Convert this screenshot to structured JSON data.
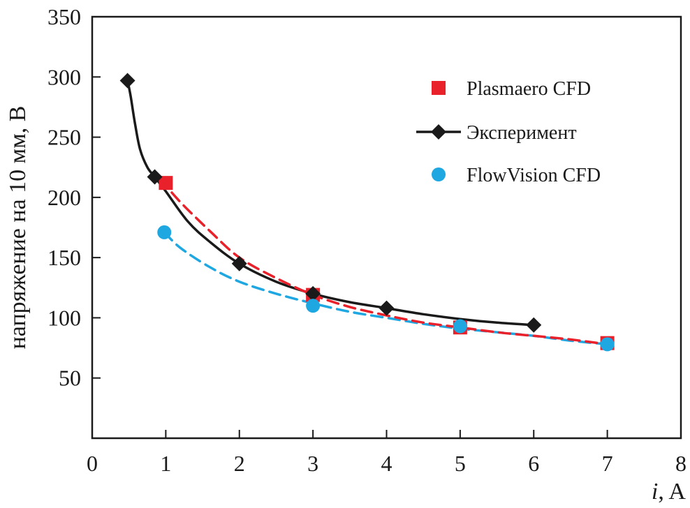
{
  "chart_data": {
    "type": "line",
    "xlabel_italic": "i",
    "xlabel_unit": ", A",
    "ylabel": "напряжение на 10 мм, В",
    "xlim": [
      0,
      8
    ],
    "ylim": [
      0,
      350
    ],
    "xticks": [
      0,
      1,
      2,
      3,
      4,
      5,
      6,
      7,
      8
    ],
    "yticks": [
      50,
      100,
      150,
      200,
      250,
      300,
      350
    ],
    "grid": false,
    "legend_position": "top-right",
    "series": [
      {
        "name": "Plasmaero CFD",
        "marker": "square",
        "color": "#e8212b",
        "line": "dashed",
        "x": [
          1,
          3,
          5,
          7
        ],
        "y": [
          212,
          119,
          92,
          79
        ],
        "curve": [
          [
            0.93,
            215
          ],
          [
            1.2,
            196
          ],
          [
            1.6,
            172
          ],
          [
            2,
            150
          ],
          [
            2.5,
            133
          ],
          [
            3,
            119
          ],
          [
            3.5,
            109
          ],
          [
            4,
            102
          ],
          [
            4.5,
            96
          ],
          [
            5,
            92
          ],
          [
            5.5,
            88
          ],
          [
            6,
            85
          ],
          [
            6.5,
            82
          ],
          [
            7,
            78
          ]
        ]
      },
      {
        "name": "Эксперимент",
        "marker": "diamond",
        "color": "#1a1a1a",
        "line": "solid",
        "x": [
          0.48,
          0.85,
          2,
          3,
          4,
          6
        ],
        "y": [
          297,
          217,
          145,
          120,
          108,
          94
        ],
        "curve": [
          [
            0.48,
            297
          ],
          [
            0.52,
            285
          ],
          [
            0.58,
            262
          ],
          [
            0.65,
            240
          ],
          [
            0.75,
            225
          ],
          [
            0.85,
            217
          ],
          [
            1,
            205
          ],
          [
            1.3,
            180
          ],
          [
            1.6,
            163
          ],
          [
            2,
            145
          ],
          [
            2.5,
            130
          ],
          [
            3,
            120
          ],
          [
            3.5,
            113
          ],
          [
            4,
            108
          ],
          [
            4.5,
            103
          ],
          [
            5,
            99
          ],
          [
            5.5,
            96
          ],
          [
            6,
            94
          ]
        ]
      },
      {
        "name": "FlowVision CFD",
        "marker": "circle",
        "color": "#1ea7e1",
        "line": "dashed",
        "x": [
          0.98,
          3,
          5,
          7
        ],
        "y": [
          171,
          110,
          93,
          78
        ],
        "curve": [
          [
            0.98,
            171
          ],
          [
            1.2,
            158
          ],
          [
            1.6,
            142
          ],
          [
            2,
            130
          ],
          [
            2.5,
            120
          ],
          [
            3,
            112
          ],
          [
            3.5,
            105
          ],
          [
            4,
            100
          ],
          [
            4.5,
            95
          ],
          [
            5,
            91
          ],
          [
            5.5,
            88
          ],
          [
            6,
            85
          ],
          [
            6.5,
            81
          ],
          [
            7,
            78
          ]
        ]
      }
    ]
  }
}
